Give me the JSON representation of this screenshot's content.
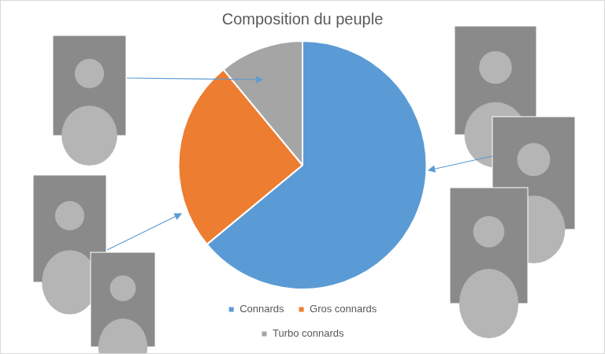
{
  "chart_data": {
    "type": "pie",
    "title": "Composition du peuple",
    "categories": [
      "Connards",
      "Gros connards",
      "Turbo connards"
    ],
    "values": [
      64,
      25,
      11
    ],
    "colors": [
      "#5b9bd5",
      "#ed7d31",
      "#a5a5a5"
    ],
    "legend": "bottom"
  }
}
